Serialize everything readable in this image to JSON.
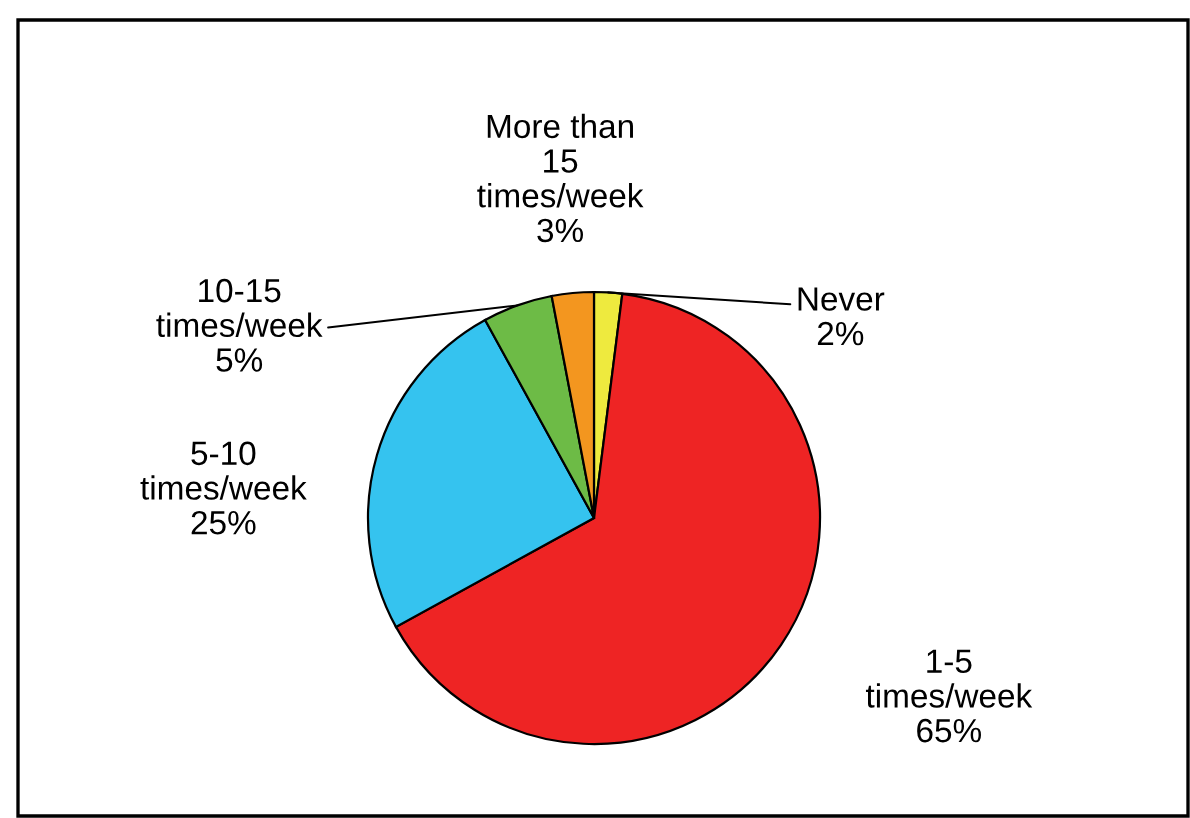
{
  "chart_data": {
    "type": "pie",
    "categories": [
      "Never",
      "1-5\ntimes/week",
      "5-10\ntimes/week",
      "10-15\ntimes/week",
      "More than\n15\ntimes/week"
    ],
    "values": [
      2,
      65,
      25,
      5,
      3
    ],
    "colors": [
      "#eeea3e",
      "#ee2424",
      "#35c3ef",
      "#6dbb46",
      "#f3961f"
    ],
    "value_labels": [
      "2%",
      "65%",
      "25%",
      "5%",
      "3%"
    ]
  }
}
